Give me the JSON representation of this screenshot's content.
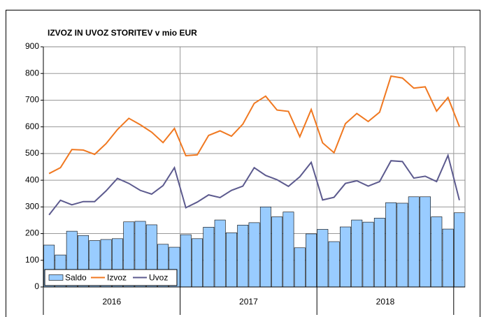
{
  "chart_data": {
    "type": "bar_line",
    "title": "IZVOZ IN UVOZ STORITEV v mio EUR",
    "categories": [
      null,
      null,
      null,
      null,
      null,
      null,
      null,
      null,
      null,
      null,
      null,
      null,
      null,
      null,
      null,
      null,
      null,
      null,
      null,
      null,
      null,
      null,
      null,
      null,
      null,
      null,
      null,
      null,
      null,
      null,
      null,
      null,
      null,
      null,
      null,
      null,
      null
    ],
    "x_groups": [
      "2016",
      "2017",
      "2018"
    ],
    "series": [
      {
        "name": "Saldo",
        "type": "bar",
        "color": "#99ccff",
        "values": [
          157,
          120,
          209,
          193,
          174,
          178,
          181,
          244,
          246,
          233,
          160,
          149,
          196,
          181,
          224,
          251,
          203,
          232,
          241,
          300,
          263,
          281,
          147,
          199,
          216,
          170,
          225,
          251,
          243,
          258,
          316,
          314,
          338,
          338,
          263,
          217,
          278
        ]
      },
      {
        "name": "Izvoz",
        "type": "line",
        "color": "#f07820",
        "values": [
          425,
          447,
          515,
          513,
          497,
          537,
          590,
          632,
          608,
          580,
          541,
          594,
          492,
          495,
          568,
          585,
          565,
          610,
          688,
          715,
          663,
          658,
          563,
          665,
          540,
          503,
          612,
          650,
          620,
          655,
          790,
          783,
          745,
          750,
          659,
          710,
          601
        ]
      },
      {
        "name": "Uvoz",
        "type": "line",
        "color": "#5c5a8e",
        "values": [
          270,
          325,
          308,
          320,
          320,
          360,
          407,
          388,
          362,
          348,
          380,
          447,
          297,
          318,
          345,
          335,
          362,
          378,
          447,
          418,
          402,
          377,
          413,
          467,
          326,
          336,
          388,
          398,
          378,
          395,
          473,
          470,
          408,
          415,
          395,
          493,
          325
        ]
      }
    ],
    "ylim": [
      0,
      900
    ],
    "yticks": [
      0,
      100,
      200,
      300,
      400,
      500,
      600,
      700,
      800,
      900
    ],
    "grid": true,
    "legend": "lower left"
  }
}
